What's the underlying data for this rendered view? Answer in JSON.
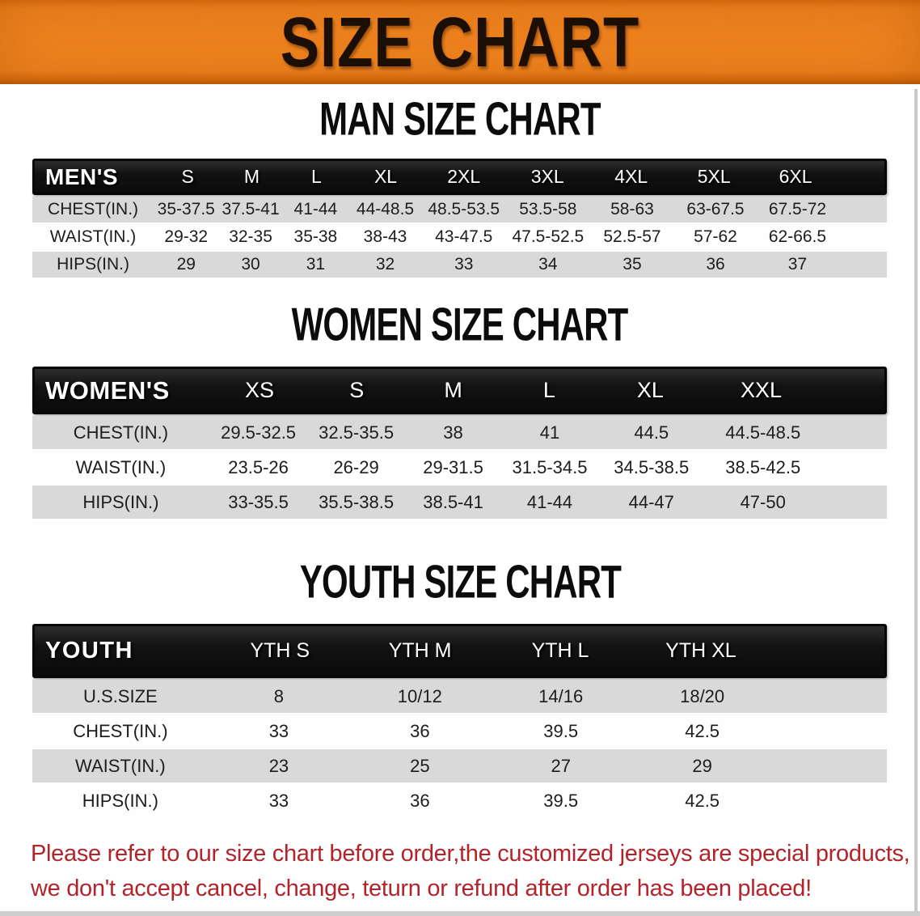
{
  "banner": {
    "title": "SIZE CHART",
    "bg_color": "#f0831e",
    "text_color": "#1b0f05"
  },
  "sections": [
    {
      "heading": "MAN SIZE CHART",
      "table": {
        "header_label": "MEN'S",
        "sizes": [
          "S",
          "M",
          "L",
          "XL",
          "2XL",
          "3XL",
          "4XL",
          "5XL",
          "6XL"
        ],
        "rows": [
          {
            "label": "CHEST(IN.)",
            "values": [
              "35-37.5",
              "37.5-41",
              "41-44",
              "44-48.5",
              "48.5-53.5",
              "53.5-58",
              "58-63",
              "63-67.5",
              "67.5-72"
            ]
          },
          {
            "label": "WAIST(IN.)",
            "values": [
              "29-32",
              "32-35",
              "35-38",
              "38-43",
              "43-47.5",
              "47.5-52.5",
              "52.5-57",
              "57-62",
              "62-66.5"
            ]
          },
          {
            "label": "HIPS(IN.)",
            "values": [
              "29",
              "30",
              "31",
              "32",
              "33",
              "34",
              "35",
              "36",
              "37"
            ]
          }
        ]
      }
    },
    {
      "heading": "WOMEN SIZE CHART",
      "table": {
        "header_label": "WOMEN'S",
        "sizes": [
          "XS",
          "S",
          "M",
          "L",
          "XL",
          "XXL"
        ],
        "rows": [
          {
            "label": "CHEST(IN.)",
            "values": [
              "29.5-32.5",
              "32.5-35.5",
              "38",
              "41",
              "44.5",
              "44.5-48.5"
            ]
          },
          {
            "label": "WAIST(IN.)",
            "values": [
              "23.5-26",
              "26-29",
              "29-31.5",
              "31.5-34.5",
              "34.5-38.5",
              "38.5-42.5"
            ]
          },
          {
            "label": "HIPS(IN.)",
            "values": [
              "33-35.5",
              "35.5-38.5",
              "38.5-41",
              "41-44",
              "44-47",
              "47-50"
            ]
          }
        ]
      }
    },
    {
      "heading": "YOUTH SIZE CHART",
      "table": {
        "header_label": "YOUTH",
        "sizes": [
          "YTH S",
          "YTH M",
          "YTH L",
          "YTH XL"
        ],
        "rows": [
          {
            "label": "U.S.SIZE",
            "values": [
              "8",
              "10/12",
              "14/16",
              "18/20"
            ]
          },
          {
            "label": "CHEST(IN.)",
            "values": [
              "33",
              "36",
              "39.5",
              "42.5"
            ]
          },
          {
            "label": "WAIST(IN.)",
            "values": [
              "23",
              "25",
              "27",
              "29"
            ]
          },
          {
            "label": "HIPS(IN.)",
            "values": [
              "33",
              "36",
              "39.5",
              "42.5"
            ]
          }
        ]
      }
    }
  ],
  "disclaimer": {
    "line1": "Please refer to our size chart before order,the customized jerseys are special products,",
    "line2": "we don't accept cancel, change, teturn or refund after order has been placed!",
    "color": "#b3242a"
  }
}
